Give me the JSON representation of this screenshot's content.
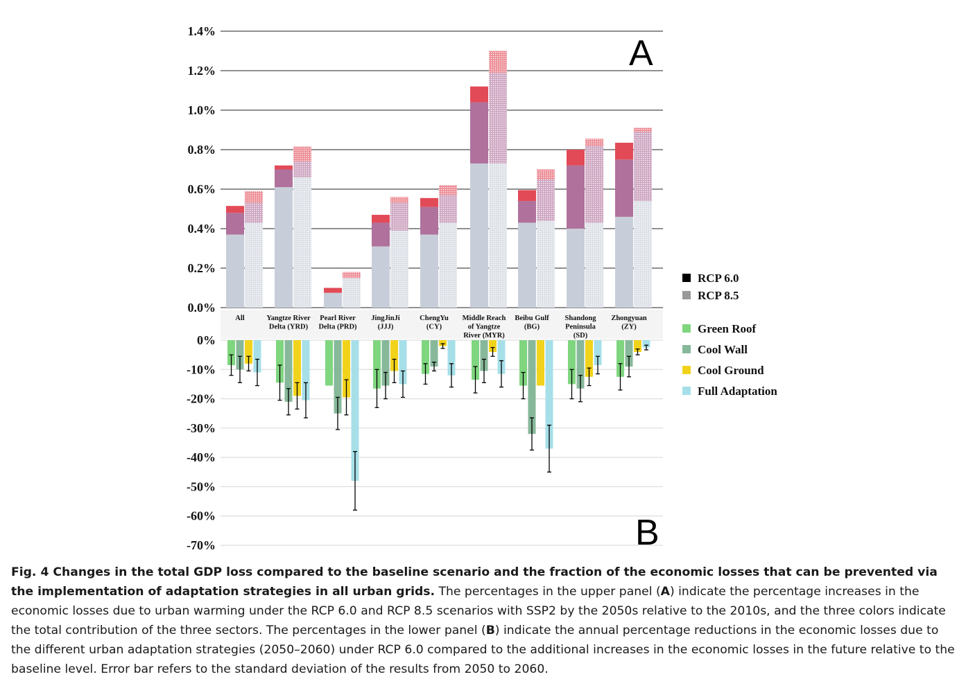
{
  "panel_labels": {
    "top": "A",
    "bottom": "B"
  },
  "legend": {
    "scenarios": [
      {
        "label": "RCP 6.0",
        "style": "solid"
      },
      {
        "label": "RCP 8.5",
        "style": "dotted"
      }
    ],
    "strategies": [
      {
        "label": "Green Roof",
        "color": "#7fd67f"
      },
      {
        "label": "Cool Wall",
        "color": "#87b89a"
      },
      {
        "label": "Cool Ground",
        "color": "#f2d31b"
      },
      {
        "label": "Full Adaptation",
        "color": "#a6dfe8"
      }
    ]
  },
  "categories": [
    [
      "All"
    ],
    [
      "Yangtze River",
      "Delta (YRD)"
    ],
    [
      "Pearl River",
      "Delta (PRD)"
    ],
    [
      "JingJinJi",
      "(JJJ)"
    ],
    [
      "ChengYu",
      "(CY)"
    ],
    [
      "Middle Reach",
      "of Yangtze",
      "River (MYR)"
    ],
    [
      "Beibu Gulf",
      "(BG)"
    ],
    [
      "Shandong",
      "Peninsula",
      "(SD)"
    ],
    [
      "Zhongyuan",
      "(ZY)"
    ]
  ],
  "chart_data": [
    {
      "panel": "A",
      "type": "bar",
      "stacked": true,
      "ylim": [
        0,
        1.4
      ],
      "yticks": [
        "0.0%",
        "0.2%",
        "0.4%",
        "0.6%",
        "0.8%",
        "1.0%",
        "1.2%",
        "1.4%"
      ],
      "segment_colors": [
        "#c8ced9",
        "#b0719c",
        "#e24a57"
      ],
      "series": [
        {
          "name": "RCP 6.0",
          "segments": [
            [
              0.37,
              0.11,
              0.035
            ],
            [
              0.61,
              0.09,
              0.02
            ],
            [
              0.075,
              0.0,
              0.025
            ],
            [
              0.31,
              0.12,
              0.04
            ],
            [
              0.37,
              0.14,
              0.045
            ],
            [
              0.73,
              0.31,
              0.08
            ],
            [
              0.43,
              0.11,
              0.055
            ],
            [
              0.4,
              0.32,
              0.08
            ],
            [
              0.46,
              0.29,
              0.085
            ]
          ]
        },
        {
          "name": "RCP 8.5",
          "segments": [
            [
              0.43,
              0.1,
              0.06
            ],
            [
              0.66,
              0.08,
              0.075
            ],
            [
              0.15,
              0.0,
              0.03
            ],
            [
              0.39,
              0.14,
              0.03
            ],
            [
              0.43,
              0.14,
              0.05
            ],
            [
              0.73,
              0.46,
              0.11
            ],
            [
              0.44,
              0.21,
              0.05
            ],
            [
              0.43,
              0.39,
              0.035
            ],
            [
              0.54,
              0.35,
              0.02
            ]
          ]
        }
      ]
    },
    {
      "panel": "B",
      "type": "bar",
      "ylim": [
        -70,
        0
      ],
      "yticks": [
        "0%",
        "-10%",
        "-20%",
        "-30%",
        "-40%",
        "-50%",
        "-60%",
        "-70%"
      ],
      "series": [
        {
          "name": "Green Roof",
          "values": [
            -8.5,
            -14.5,
            -15.5,
            -16.5,
            -11.5,
            -13.5,
            -15.5,
            -15,
            -12.5
          ],
          "errors": [
            3.5,
            6,
            0,
            6.5,
            3.5,
            4.5,
            4.5,
            5,
            4.5
          ]
        },
        {
          "name": "Cool Wall",
          "values": [
            -10,
            -21,
            -25,
            -15.5,
            -9,
            -10.5,
            -32,
            -16.5,
            -9
          ],
          "errors": [
            4.5,
            4.5,
            5.5,
            4.5,
            1.5,
            4,
            5.5,
            4.5,
            3.5
          ]
        },
        {
          "name": "Cool Ground",
          "values": [
            -8,
            -19,
            -19.5,
            -10.5,
            -2,
            -4,
            -15.5,
            -12.5,
            -4
          ],
          "errors": [
            2.5,
            4.5,
            6,
            4,
            0.8,
            1.5,
            0,
            3,
            1
          ]
        },
        {
          "name": "Full Adaptation",
          "values": [
            -11,
            -20.5,
            -48,
            -15,
            -12,
            -11.5,
            -37,
            -8.5,
            -2.5
          ],
          "errors": [
            4.5,
            6,
            10,
            4.5,
            4,
            4.5,
            8,
            3,
            0.8
          ]
        }
      ]
    }
  ],
  "caption": {
    "bold": "Fig. 4 Changes in the total GDP loss compared to the baseline scenario and the fraction of the economic losses that can be prevented via the implementation of adaptation strategies in all urban grids.",
    "part1": " The percentages in the upper panel (",
    "ref_a": "A",
    "part2": ") indicate the percentage increases in the economic losses due to urban warming under the RCP 6.0 and RCP 8.5 scenarios with SSP2 by the 2050s relative to the 2010s, and the three colors indicate the total contribution of the three sectors. The percentages in the lower panel (",
    "ref_b": "B",
    "part3": ") indicate the annual percentage reductions in the economic losses due to the different urban adaptation strategies (2050–2060) under RCP 6.0 compared to the additional increases in the economic losses in the future relative to the baseline level. Error bar refers to the standard deviation of the results from 2050 to 2060."
  }
}
